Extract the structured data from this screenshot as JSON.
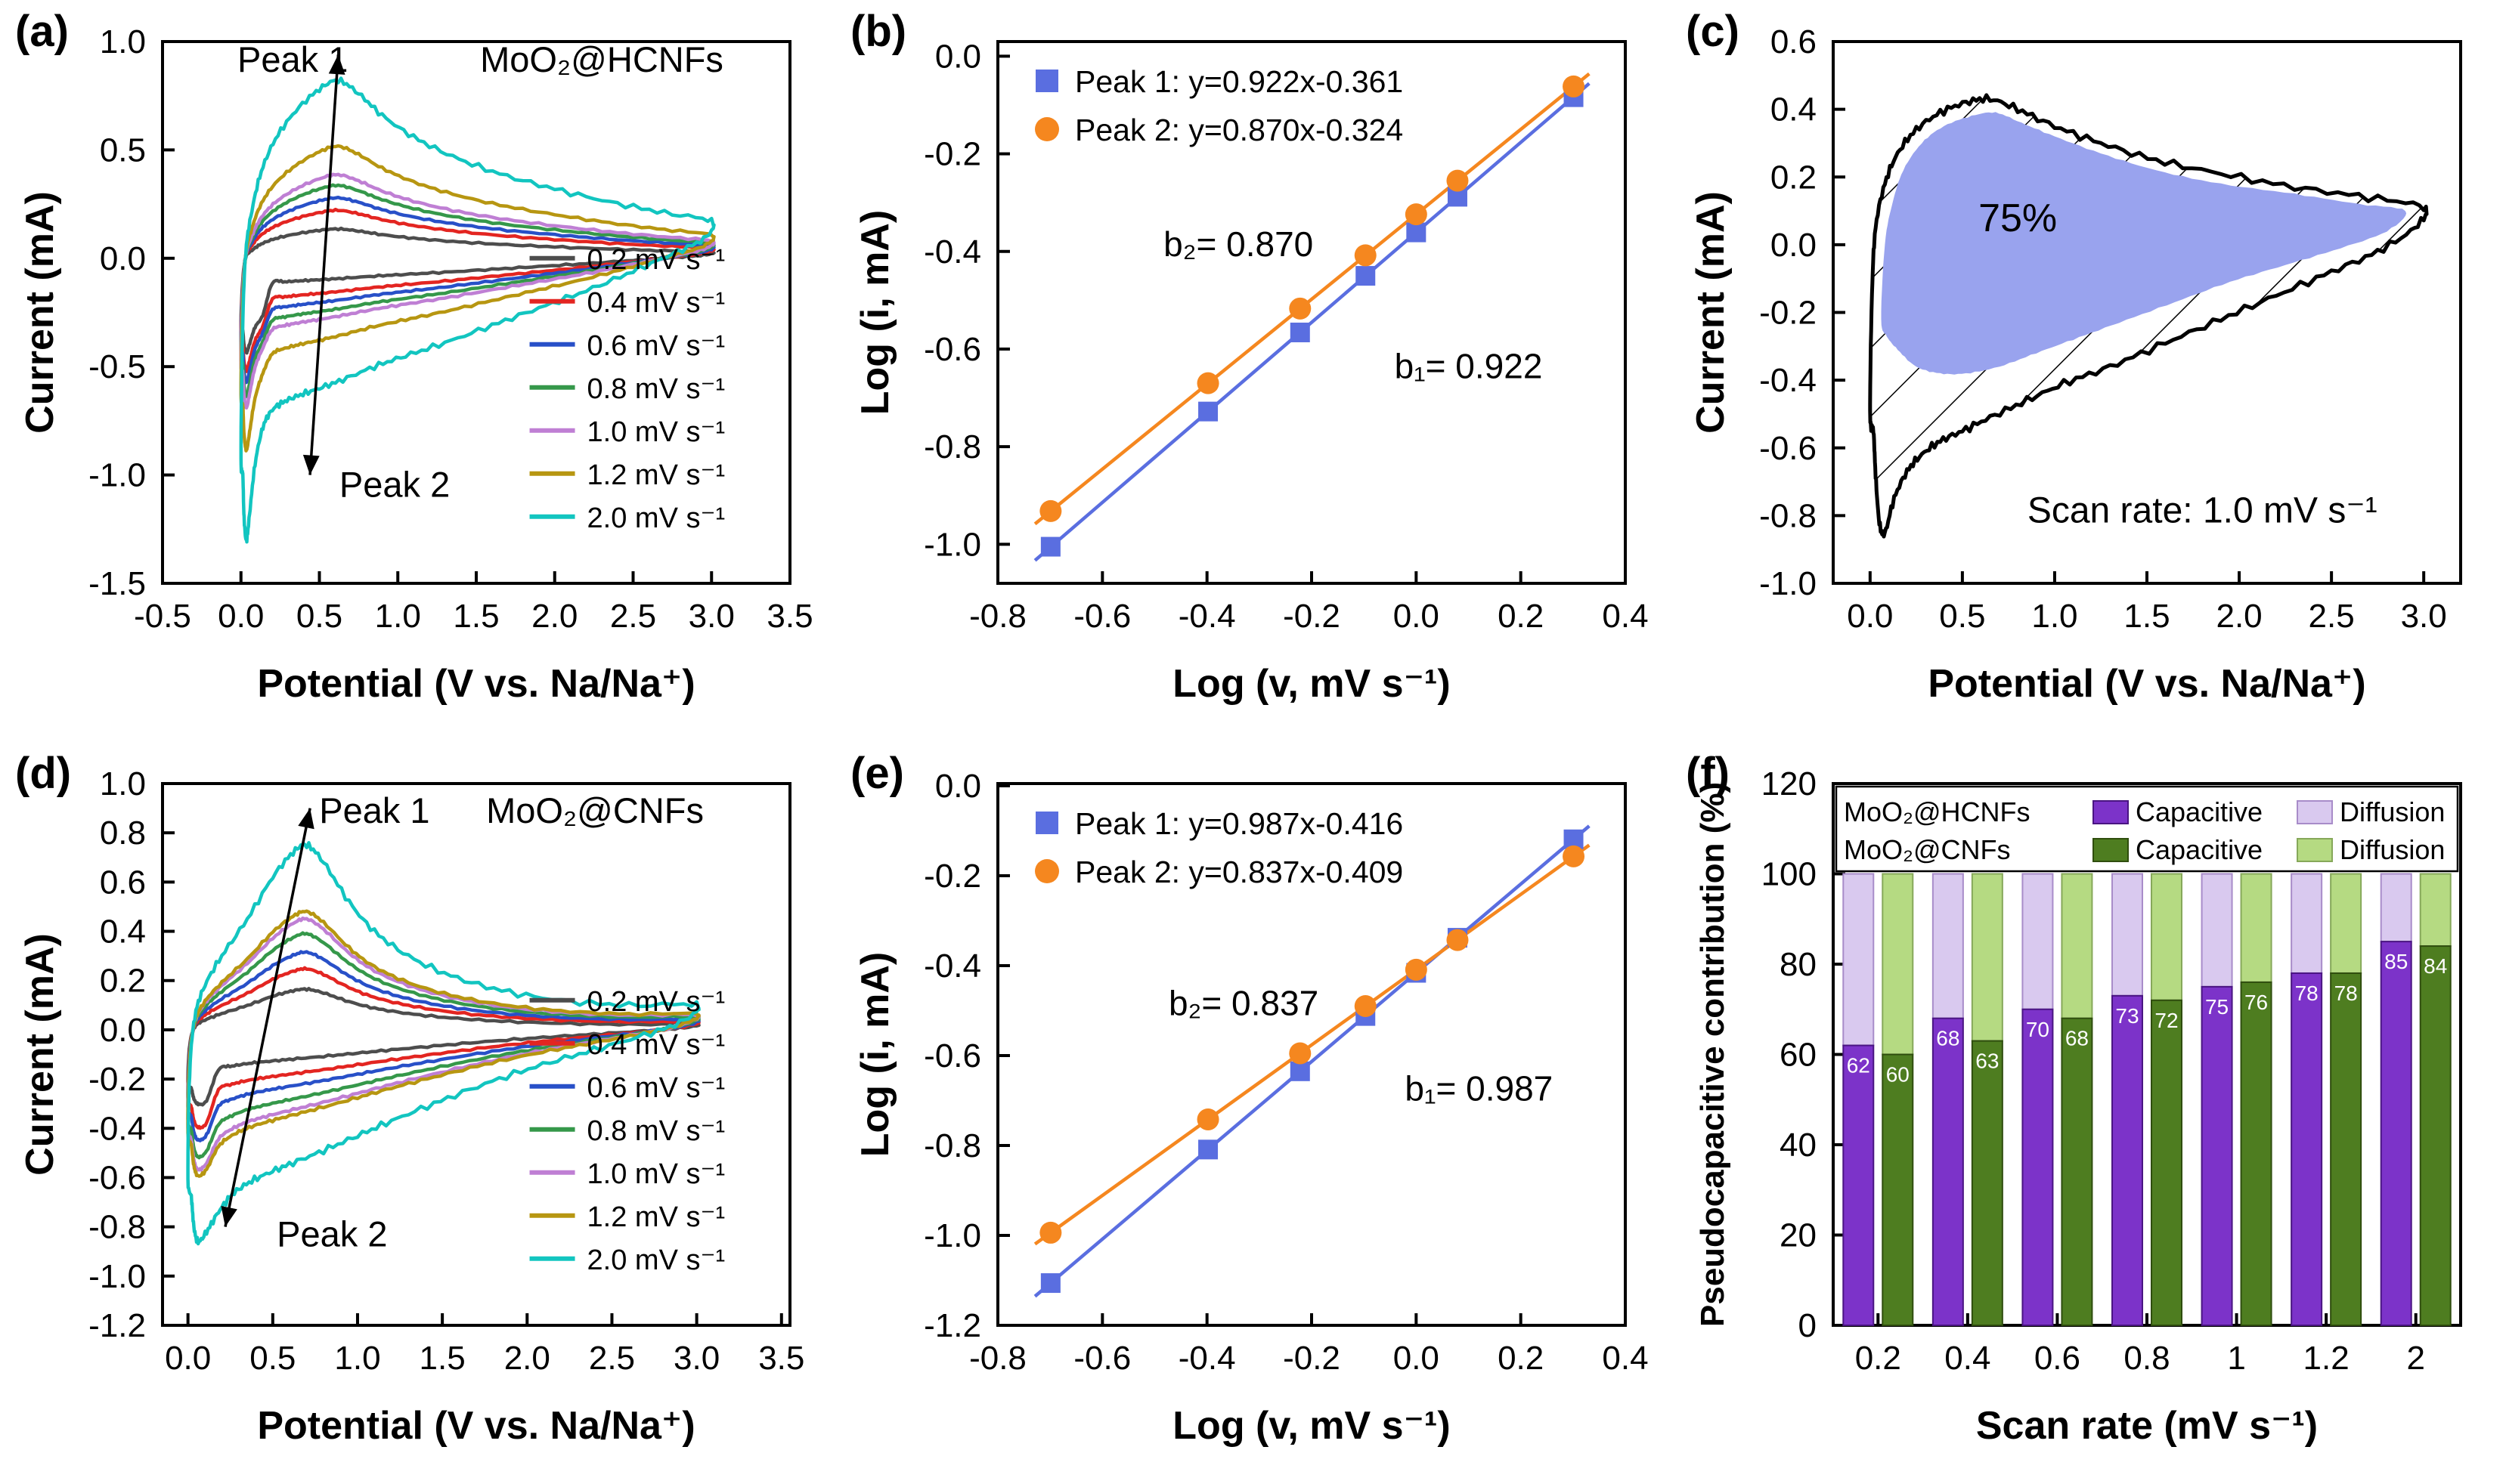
{
  "figure": {
    "background": "#ffffff"
  },
  "panel_labels": {
    "a": "(a)",
    "b": "(b)",
    "c": "(c)",
    "d": "(d)",
    "e": "(e)",
    "f": "(f)"
  },
  "chart_data": [
    {
      "id": "a",
      "type": "cv",
      "title": "MoO₂@HCNFs",
      "xlabel": "Potential (V vs. Na/Na⁺)",
      "ylabel": "Current (mA)",
      "xlim": [
        -0.5,
        3.5
      ],
      "ylim": [
        -1.5,
        1.0
      ],
      "xticks": [
        "-0.5",
        "0.0",
        "0.5",
        "1.0",
        "1.5",
        "2.0",
        "2.5",
        "3.0",
        "3.5"
      ],
      "yticks": [
        "-1.5",
        "-1.0",
        "-0.5",
        "0.0",
        "0.5",
        "1.0"
      ],
      "annotations": [
        {
          "text": "Peak 1",
          "x": 0.33,
          "y": 0.86
        },
        {
          "text": "MoO₂@HCNFs",
          "x": 2.3,
          "y": 0.86
        },
        {
          "text": "Peak 2",
          "x": 0.98,
          "y": -1.1
        }
      ],
      "arrow": {
        "x1": 0.44,
        "y1": -1.0,
        "x2": 0.62,
        "y2": 0.94
      },
      "series": [
        {
          "name": "0.2 mV s⁻¹",
          "color": "#4d4d4d",
          "scale": 0.165,
          "spike": 0.17,
          "noise": 0.004
        },
        {
          "name": "0.4 mV s⁻¹",
          "color": "#e32521",
          "scale": 0.27,
          "spike": 0.13,
          "noise": 0.004
        },
        {
          "name": "0.6 mV s⁻¹",
          "color": "#2850c8",
          "scale": 0.34,
          "spike": 0.1,
          "noise": 0.004
        },
        {
          "name": "0.8 mV s⁻¹",
          "color": "#35984a",
          "scale": 0.41,
          "spike": 0.08,
          "noise": 0.004
        },
        {
          "name": "1.0 mV s⁻¹",
          "color": "#bf7fd4",
          "scale": 0.47,
          "spike": 0.06,
          "noise": 0.005
        },
        {
          "name": "1.2 mV s⁻¹",
          "color": "#b79611",
          "scale": 0.63,
          "spike": 0.05,
          "noise": 0.006
        },
        {
          "name": "2.0 mV s⁻¹",
          "color": "#12c5c0",
          "scale": 1.0,
          "spike": 0.0,
          "noise": 0.014
        }
      ],
      "ring": [
        [
          0.0,
          -0.92
        ],
        [
          0.01,
          -0.35
        ],
        [
          0.03,
          0.02
        ],
        [
          0.07,
          0.22
        ],
        [
          0.13,
          0.4
        ],
        [
          0.22,
          0.55
        ],
        [
          0.35,
          0.68
        ],
        [
          0.5,
          0.78
        ],
        [
          0.62,
          0.82
        ],
        [
          0.75,
          0.76
        ],
        [
          0.9,
          0.66
        ],
        [
          1.1,
          0.56
        ],
        [
          1.35,
          0.47
        ],
        [
          1.65,
          0.39
        ],
        [
          2.0,
          0.32
        ],
        [
          2.35,
          0.26
        ],
        [
          2.7,
          0.21
        ],
        [
          3.0,
          0.17
        ],
        [
          2.95,
          0.09
        ],
        [
          2.75,
          0.02
        ],
        [
          2.5,
          -0.06
        ],
        [
          2.2,
          -0.15
        ],
        [
          1.9,
          -0.23
        ],
        [
          1.6,
          -0.31
        ],
        [
          1.3,
          -0.39
        ],
        [
          1.05,
          -0.45
        ],
        [
          0.85,
          -0.5
        ],
        [
          0.65,
          -0.56
        ],
        [
          0.5,
          -0.6
        ],
        [
          0.38,
          -0.63
        ],
        [
          0.28,
          -0.66
        ],
        [
          0.2,
          -0.7
        ],
        [
          0.14,
          -0.78
        ],
        [
          0.09,
          -0.95
        ],
        [
          0.055,
          -1.18
        ],
        [
          0.035,
          -1.3
        ],
        [
          0.02,
          -1.2
        ],
        [
          0.012,
          -1.0
        ]
      ]
    },
    {
      "id": "b",
      "type": "scatter-fit",
      "xlabel": "Log (v, mV s⁻¹)",
      "ylabel": "Log (i, mA)",
      "xlim": [
        -0.8,
        0.4
      ],
      "ylim": [
        -1.08,
        0.03
      ],
      "xticks": [
        "-0.8",
        "-0.6",
        "-0.4",
        "-0.2",
        "0.0",
        "0.2",
        "0.4"
      ],
      "yticks": [
        "0.0",
        "-0.2",
        "-0.4",
        "-0.6",
        "-0.8",
        "-1.0"
      ],
      "series": [
        {
          "name": "Peak 1: y=0.922x-0.361",
          "marker": "square",
          "color": "#5a6ee0",
          "slope": 0.922,
          "intercept": -0.361,
          "x": [
            -0.699,
            -0.398,
            -0.222,
            -0.097,
            0.0,
            0.079,
            0.301
          ],
          "y": [
            -1.005,
            -0.728,
            -0.566,
            -0.45,
            -0.361,
            -0.288,
            -0.084
          ]
        },
        {
          "name": "Peak 2: y=0.870x-0.324",
          "marker": "circle",
          "color": "#f5871f",
          "slope": 0.87,
          "intercept": -0.324,
          "x": [
            -0.699,
            -0.398,
            -0.222,
            -0.097,
            0.0,
            0.079,
            0.301
          ],
          "y": [
            -0.932,
            -0.67,
            -0.517,
            -0.408,
            -0.324,
            -0.255,
            -0.062
          ]
        }
      ],
      "annotations": [
        {
          "text": "b₂= 0.870",
          "x": -0.34,
          "y": -0.41
        },
        {
          "text": "b₁= 0.922",
          "x": 0.1,
          "y": -0.66
        }
      ]
    },
    {
      "id": "c",
      "type": "cv-shaded",
      "xlabel": "Potential (V vs. Na/Na⁺)",
      "ylabel": "Current (mA)",
      "xlim": [
        -0.2,
        3.2
      ],
      "ylim": [
        -1.0,
        0.6
      ],
      "xticks": [
        "0.0",
        "0.5",
        "1.0",
        "1.5",
        "2.0",
        "2.5",
        "3.0"
      ],
      "yticks": [
        "-1.0",
        "-0.8",
        "-0.6",
        "-0.4",
        "-0.2",
        "0.0",
        "0.2",
        "0.4",
        "0.6"
      ],
      "fill_color": "#99a3ee",
      "outer_color": "#000000",
      "noise": 0.012,
      "percent_label": "75%",
      "percent_pos": [
        0.8,
        0.04
      ],
      "scan_label": "Scan rate: 1.0 mV s⁻¹",
      "scan_pos": [
        1.8,
        -0.82
      ],
      "outer": [
        [
          0.0,
          -0.5
        ],
        [
          0.01,
          -0.15
        ],
        [
          0.03,
          0.05
        ],
        [
          0.08,
          0.18
        ],
        [
          0.15,
          0.27
        ],
        [
          0.25,
          0.34
        ],
        [
          0.38,
          0.39
        ],
        [
          0.52,
          0.42
        ],
        [
          0.65,
          0.43
        ],
        [
          0.8,
          0.4
        ],
        [
          1.0,
          0.35
        ],
        [
          1.25,
          0.3
        ],
        [
          1.55,
          0.25
        ],
        [
          1.9,
          0.21
        ],
        [
          2.3,
          0.17
        ],
        [
          2.7,
          0.14
        ],
        [
          3.0,
          0.11
        ],
        [
          2.95,
          0.05
        ],
        [
          2.75,
          -0.02
        ],
        [
          2.5,
          -0.08
        ],
        [
          2.2,
          -0.15
        ],
        [
          1.9,
          -0.22
        ],
        [
          1.6,
          -0.29
        ],
        [
          1.3,
          -0.36
        ],
        [
          1.05,
          -0.41
        ],
        [
          0.85,
          -0.46
        ],
        [
          0.65,
          -0.51
        ],
        [
          0.5,
          -0.55
        ],
        [
          0.38,
          -0.58
        ],
        [
          0.28,
          -0.62
        ],
        [
          0.2,
          -0.67
        ],
        [
          0.13,
          -0.75
        ],
        [
          0.08,
          -0.85
        ],
        [
          0.05,
          -0.82
        ],
        [
          0.03,
          -0.68
        ],
        [
          0.018,
          -0.55
        ]
      ],
      "inner": [
        [
          0.06,
          -0.22
        ],
        [
          0.08,
          0.0
        ],
        [
          0.12,
          0.12
        ],
        [
          0.18,
          0.22
        ],
        [
          0.28,
          0.3
        ],
        [
          0.4,
          0.35
        ],
        [
          0.55,
          0.38
        ],
        [
          0.68,
          0.39
        ],
        [
          0.82,
          0.36
        ],
        [
          1.0,
          0.32
        ],
        [
          1.25,
          0.27
        ],
        [
          1.55,
          0.22
        ],
        [
          1.9,
          0.18
        ],
        [
          2.3,
          0.15
        ],
        [
          2.65,
          0.12
        ],
        [
          2.9,
          0.1
        ],
        [
          2.8,
          0.04
        ],
        [
          2.55,
          -0.01
        ],
        [
          2.25,
          -0.06
        ],
        [
          1.95,
          -0.11
        ],
        [
          1.65,
          -0.17
        ],
        [
          1.35,
          -0.23
        ],
        [
          1.1,
          -0.28
        ],
        [
          0.9,
          -0.32
        ],
        [
          0.7,
          -0.36
        ],
        [
          0.52,
          -0.38
        ],
        [
          0.38,
          -0.38
        ],
        [
          0.25,
          -0.36
        ],
        [
          0.15,
          -0.31
        ],
        [
          0.09,
          -0.27
        ]
      ]
    },
    {
      "id": "d",
      "type": "cv",
      "title": "MoO₂@CNFs",
      "xlabel": "Potential (V vs. Na/Na⁺)",
      "ylabel": "Current (mA)",
      "xlim": [
        -0.15,
        3.55
      ],
      "ylim": [
        -1.2,
        1.0
      ],
      "xticks": [
        "0.0",
        "0.5",
        "1.0",
        "1.5",
        "2.0",
        "2.5",
        "3.0",
        "3.5"
      ],
      "yticks": [
        "-1.2",
        "-1.0",
        "-0.8",
        "-0.6",
        "-0.4",
        "-0.2",
        "0.0",
        "0.2",
        "0.4",
        "0.6",
        "0.8",
        "1.0"
      ],
      "annotations": [
        {
          "text": "Peak 1",
          "x": 1.1,
          "y": 0.84
        },
        {
          "text": "MoO₂@CNFs",
          "x": 2.4,
          "y": 0.84
        },
        {
          "text": "Peak 2",
          "x": 0.85,
          "y": -0.88
        }
      ],
      "arrow": {
        "x1": 0.22,
        "y1": -0.8,
        "x2": 0.72,
        "y2": 0.9
      },
      "series": [
        {
          "name": "0.2 mV s⁻¹",
          "color": "#4d4d4d",
          "scale": 0.22,
          "spike": 0.13,
          "noise": 0.004
        },
        {
          "name": "0.4 mV s⁻¹",
          "color": "#e32521",
          "scale": 0.33,
          "spike": 0.13,
          "noise": 0.004
        },
        {
          "name": "0.6 mV s⁻¹",
          "color": "#2850c8",
          "scale": 0.42,
          "spike": 0.1,
          "noise": 0.004
        },
        {
          "name": "0.8 mV s⁻¹",
          "color": "#35984a",
          "scale": 0.52,
          "spike": 0.08,
          "noise": 0.004
        },
        {
          "name": "1.0 mV s⁻¹",
          "color": "#bf7fd4",
          "scale": 0.6,
          "spike": 0.06,
          "noise": 0.005
        },
        {
          "name": "1.2 mV s⁻¹",
          "color": "#b79611",
          "scale": 0.64,
          "spike": 0.05,
          "noise": 0.006
        },
        {
          "name": "2.0 mV s⁻¹",
          "color": "#12c5c0",
          "scale": 1.0,
          "spike": 0.0,
          "noise": 0.014
        }
      ],
      "ring": [
        [
          0.0,
          -0.6
        ],
        [
          0.01,
          -0.18
        ],
        [
          0.04,
          0.05
        ],
        [
          0.1,
          0.18
        ],
        [
          0.2,
          0.3
        ],
        [
          0.35,
          0.45
        ],
        [
          0.5,
          0.62
        ],
        [
          0.62,
          0.72
        ],
        [
          0.7,
          0.75
        ],
        [
          0.8,
          0.68
        ],
        [
          0.95,
          0.52
        ],
        [
          1.1,
          0.4
        ],
        [
          1.3,
          0.3
        ],
        [
          1.55,
          0.22
        ],
        [
          1.85,
          0.16
        ],
        [
          2.2,
          0.12
        ],
        [
          2.6,
          0.1
        ],
        [
          3.0,
          0.1
        ],
        [
          2.9,
          0.03
        ],
        [
          2.65,
          -0.03
        ],
        [
          2.35,
          -0.09
        ],
        [
          2.05,
          -0.15
        ],
        [
          1.75,
          -0.22
        ],
        [
          1.45,
          -0.3
        ],
        [
          1.2,
          -0.37
        ],
        [
          1.0,
          -0.43
        ],
        [
          0.8,
          -0.49
        ],
        [
          0.62,
          -0.54
        ],
        [
          0.48,
          -0.58
        ],
        [
          0.36,
          -0.62
        ],
        [
          0.26,
          -0.67
        ],
        [
          0.18,
          -0.74
        ],
        [
          0.11,
          -0.82
        ],
        [
          0.06,
          -0.86
        ],
        [
          0.035,
          -0.8
        ],
        [
          0.02,
          -0.68
        ]
      ]
    },
    {
      "id": "e",
      "type": "scatter-fit",
      "xlabel": "Log (v, mV s⁻¹)",
      "ylabel": "Log (i, mA)",
      "xlim": [
        -0.8,
        0.4
      ],
      "ylim": [
        -1.2,
        0.005
      ],
      "xticks": [
        "-0.8",
        "-0.6",
        "-0.4",
        "-0.2",
        "0.0",
        "0.2",
        "0.4"
      ],
      "yticks": [
        "0.0",
        "-0.2",
        "-0.4",
        "-0.6",
        "-0.8",
        "-1.0",
        "-1.2"
      ],
      "series": [
        {
          "name": "Peak 1: y=0.987x-0.416",
          "marker": "square",
          "color": "#5a6ee0",
          "slope": 0.987,
          "intercept": -0.416,
          "x": [
            -0.699,
            -0.398,
            -0.222,
            -0.097,
            0.0,
            0.079,
            0.301
          ],
          "y": [
            -1.106,
            -0.809,
            -0.635,
            -0.512,
            -0.416,
            -0.338,
            -0.119
          ]
        },
        {
          "name": "Peak 2: y=0.837x-0.409",
          "marker": "circle",
          "color": "#f5871f",
          "slope": 0.837,
          "intercept": -0.409,
          "x": [
            -0.699,
            -0.398,
            -0.222,
            -0.097,
            0.0,
            0.079,
            0.301
          ],
          "y": [
            -0.994,
            -0.742,
            -0.595,
            -0.49,
            -0.409,
            -0.343,
            -0.157
          ]
        }
      ],
      "annotations": [
        {
          "text": "b₂= 0.837",
          "x": -0.33,
          "y": -0.51
        },
        {
          "text": "b₁= 0.987",
          "x": 0.12,
          "y": -0.7
        }
      ]
    },
    {
      "id": "f",
      "type": "stacked-bar",
      "xlabel": "Scan rate (mV s⁻¹)",
      "ylabel": "Pseudocapacitive contribution (%)",
      "ylim": [
        0,
        120
      ],
      "yticks": [
        "0",
        "20",
        "40",
        "60",
        "80",
        "100",
        "120"
      ],
      "categories": [
        "0.2",
        "0.4",
        "0.6",
        "0.8",
        "1",
        "1.2",
        "2"
      ],
      "total": 100,
      "legend": {
        "capacitive": "Capacitive",
        "diffusion": "Diffusion"
      },
      "series": [
        {
          "name": "MoO₂@HCNFs",
          "cap_color": "#7c33c9",
          "cap_edge": "#4a1582",
          "diff_color": "#d9c9ef",
          "diff_edge": "#a88cc9",
          "capacitive": [
            62,
            68,
            70,
            73,
            75,
            78,
            85
          ]
        },
        {
          "name": "MoO₂@CNFs",
          "cap_color": "#4e7d20",
          "cap_edge": "#2f4d0e",
          "diff_color": "#b5da82",
          "diff_edge": "#86a85a",
          "capacitive": [
            60,
            63,
            68,
            72,
            76,
            78,
            84
          ]
        }
      ]
    }
  ]
}
